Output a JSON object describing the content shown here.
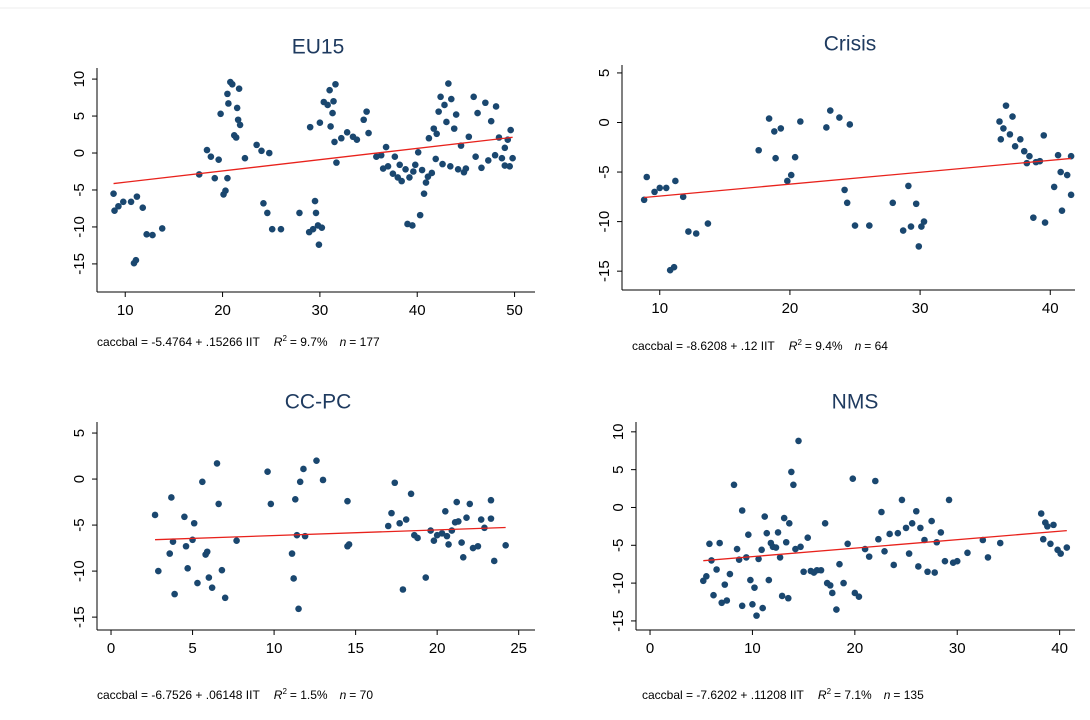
{
  "chart_data": [
    {
      "type": "scatter",
      "title": "EU15",
      "color": "#1a476f",
      "fit_color": "#e8221c",
      "fit": {
        "intercept": -5.4764,
        "slope": 0.15266
      },
      "footnote": {
        "equation": "caccbal = -5.4764 + .15266 IIT",
        "r2_label": "R",
        "r2_power": "2",
        "r2_value": "= 9.7%",
        "n_label": "n",
        "n_value": "= 177"
      },
      "xlim": [
        7.1,
        52.1
      ],
      "ylim": [
        -18.8,
        11.5
      ],
      "xticks": [
        10,
        20,
        30,
        40,
        50
      ],
      "yticks": [
        -15,
        -10,
        -5,
        0,
        5,
        10
      ],
      "x": [
        8.8,
        8.9,
        9.3,
        9.8,
        10.6,
        11.2,
        10.9,
        11.1,
        11.8,
        12.2,
        12.8,
        13.8,
        17.6,
        18.4,
        18.8,
        19.2,
        19.6,
        19.8,
        20.1,
        20.3,
        20.5,
        20.8,
        21,
        20.6,
        20.5,
        21.2,
        21.5,
        21.6,
        21.8,
        21.4,
        21.7,
        22.3,
        23.5,
        24,
        24.2,
        24.6,
        25.1,
        26,
        24.8,
        27.9,
        28.9,
        29.3,
        29.5,
        29.8,
        30.2,
        29.9,
        29.6,
        30,
        29,
        30.4,
        30.8,
        31,
        31.4,
        31.6,
        31.3,
        31.1,
        31.7,
        31.5,
        32.2,
        32.8,
        33.4,
        33.8,
        34.5,
        34.8,
        35,
        35.8,
        36.3,
        36.8,
        36.5,
        37,
        37.5,
        38,
        38.4,
        38.8,
        39.2,
        39.8,
        40.1,
        39.5,
        39,
        40.3,
        40.7,
        40.9,
        41.1,
        41.5,
        41.2,
        41.7,
        42,
        42.2,
        42.4,
        42.8,
        43,
        43.2,
        43.5,
        43.8,
        44,
        44.5,
        44.2,
        44.8,
        45.3,
        45.8,
        46.2,
        46.6,
        47,
        47.3,
        47.6,
        48,
        48.1,
        48.4,
        49,
        49.3,
        49.6,
        49.8,
        49,
        49.5,
        48.7,
        42.6,
        43.4,
        41.9,
        40.5,
        39.6,
        38.2,
        37.7,
        45,
        46
      ],
      "values": [
        -5.5,
        -7.8,
        -7.2,
        -6.6,
        -6.6,
        -5.9,
        -14.9,
        -14.5,
        -7.4,
        -11,
        -11.1,
        -10.2,
        -2.9,
        0.4,
        -0.5,
        -3.4,
        -0.9,
        5.3,
        -5.6,
        -5.1,
        -3.4,
        9.6,
        9.3,
        6.7,
        8,
        2.4,
        6.1,
        4.5,
        3.8,
        2.1,
        8.7,
        -0.7,
        1.1,
        0.3,
        -6.8,
        -8.1,
        -10.3,
        -10.3,
        0,
        -8.1,
        -10.7,
        -10.3,
        -6.5,
        -9.8,
        -10.1,
        -12.4,
        -8.1,
        4.1,
        3.5,
        6.9,
        6.5,
        8.5,
        7,
        9.3,
        5.4,
        3.6,
        -1.3,
        1.5,
        2,
        2.8,
        2.2,
        1.8,
        4.5,
        5.6,
        2.7,
        -0.5,
        -0.3,
        0.8,
        -2.1,
        -1.8,
        -2.8,
        -3.3,
        -3.8,
        -2.2,
        -3.3,
        -1.6,
        0.1,
        -9.8,
        -9.6,
        -8.4,
        -5.5,
        -4,
        -3.2,
        -2.7,
        2,
        3.3,
        2.6,
        5.6,
        7.6,
        6.5,
        4.2,
        9.4,
        7.3,
        3.3,
        5.2,
        1,
        -2.2,
        -2.6,
        2.2,
        7.6,
        5.4,
        -2,
        6.8,
        -1,
        4.3,
        -0.3,
        6.3,
        2.1,
        -1.7,
        1.8,
        3.1,
        -0.7,
        0.7,
        -1.8,
        -0.7,
        -1.5,
        -1.8,
        -0.8,
        -2.3,
        -2.5,
        -1.6,
        -0.5,
        -2.1,
        -0.5
      ]
    },
    {
      "type": "scatter",
      "title": "Crisis",
      "color": "#1a476f",
      "fit_color": "#e8221c",
      "fit": {
        "intercept": -8.6208,
        "slope": 0.12
      },
      "footnote": {
        "equation": "caccbal = -8.6208 + .12 IIT",
        "r2_label": "R",
        "r2_power": "2",
        "r2_value": "= 9.4%",
        "n_label": "n",
        "n_value": "= 64"
      },
      "xlim": [
        7.1,
        41.9
      ],
      "ylim": [
        -16.9,
        5.8
      ],
      "xticks": [
        10,
        20,
        30,
        40
      ],
      "yticks": [
        -15,
        -10,
        -5,
        0,
        5
      ],
      "x": [
        8.8,
        9,
        9.6,
        10,
        10.5,
        11.2,
        10.8,
        11.1,
        11.8,
        12.2,
        12.8,
        13.7,
        17.6,
        18.4,
        18.8,
        18.9,
        19.3,
        19.8,
        20.1,
        20.4,
        20.8,
        22.8,
        23.1,
        23.8,
        24.2,
        24.4,
        24.6,
        25,
        26.1,
        27.9,
        28.7,
        29.1,
        29.3,
        29.7,
        30.1,
        30.3,
        29.9,
        36.1,
        36.2,
        36.4,
        36.6,
        36.9,
        37.1,
        37.3,
        37.7,
        38,
        38.4,
        38.7,
        38.9,
        39.2,
        39.5,
        39.6,
        40.3,
        40.6,
        40.8,
        40.9,
        41.3,
        41.6,
        41.6,
        38.2
      ],
      "values": [
        -7.8,
        -5.5,
        -7,
        -6.6,
        -6.6,
        -5.9,
        -14.9,
        -14.6,
        -7.5,
        -11,
        -11.2,
        -10.2,
        -2.8,
        0.4,
        -0.9,
        -3.6,
        -0.6,
        -5.9,
        -5.3,
        -3.5,
        0.1,
        -0.5,
        1.2,
        0.5,
        -6.8,
        -8.1,
        -0.2,
        -10.4,
        -10.4,
        -8.1,
        -10.9,
        -6.4,
        -10.5,
        -8.2,
        -10.5,
        -10,
        -12.5,
        0.1,
        -1.7,
        -0.6,
        1.7,
        -1.2,
        0.6,
        -2.4,
        -1.7,
        -2.9,
        -3.4,
        -9.6,
        -4,
        -3.9,
        -1.3,
        -10.1,
        -6.5,
        -3.3,
        -5,
        -8.9,
        -5.3,
        -3.4,
        -7.3,
        -4.1
      ]
    },
    {
      "type": "scatter",
      "title": "CC-PC",
      "color": "#1a476f",
      "fit_color": "#e8221c",
      "fit": {
        "intercept": -6.7526,
        "slope": 0.06148
      },
      "footnote": {
        "equation": "caccbal = -6.7526 + .06148 IIT",
        "r2_label": "R",
        "r2_power": "2",
        "r2_value": "= 1.5%",
        "n_label": "n",
        "n_value": "= 70"
      },
      "xlim": [
        -0.86,
        26
      ],
      "ylim": [
        -16.4,
        6.2
      ],
      "xticks": [
        0,
        5,
        10,
        15,
        20,
        25
      ],
      "yticks": [
        -15,
        -10,
        -5,
        0,
        5
      ],
      "x": [
        2.7,
        2.9,
        3.7,
        3.9,
        3.8,
        3.6,
        4.5,
        4.6,
        4.7,
        5,
        5.1,
        5.3,
        5.6,
        5.8,
        5.9,
        6,
        6.2,
        6.5,
        6.6,
        6.8,
        7,
        9.6,
        9.8,
        11.1,
        11.2,
        11.3,
        11.4,
        11.5,
        11.6,
        11.8,
        11.9,
        12.6,
        13,
        14.5,
        14.5,
        14.6,
        17.2,
        17.4,
        17.7,
        17.9,
        18.1,
        18.4,
        18.6,
        18.8,
        19.3,
        19.6,
        19.8,
        20,
        20.3,
        20.5,
        20.6,
        20.9,
        21.1,
        21.2,
        21.3,
        21.5,
        21.6,
        21.8,
        22,
        22.2,
        22.5,
        22.7,
        22.9,
        23.3,
        23.5,
        24.2,
        23.3,
        20.7,
        17,
        7.7
      ],
      "values": [
        -3.9,
        -10,
        -2,
        -12.5,
        -6.8,
        -8.1,
        -4.1,
        -7.3,
        -9.7,
        -6.6,
        -4.8,
        -11.3,
        -0.3,
        -8.2,
        -7.9,
        -10.7,
        -11.8,
        1.7,
        -2.7,
        -9.9,
        -12.9,
        0.8,
        -2.7,
        -8.1,
        -10.8,
        -2.2,
        -6.1,
        -14.1,
        -0.3,
        1.1,
        -6.2,
        2,
        -0.1,
        -2.4,
        -7.3,
        -7.1,
        -3.7,
        -0.4,
        -4.8,
        -12,
        -4.4,
        -1.6,
        -6.1,
        -6.4,
        -10.7,
        -5.6,
        -6.7,
        -6.1,
        -5.9,
        -3.5,
        -6.2,
        -5.6,
        -4.7,
        -2.5,
        -4.6,
        -6.9,
        -8.5,
        -4.2,
        -2.7,
        -7.5,
        -7.3,
        -4.4,
        -5.3,
        -2.3,
        -8.9,
        -7.2,
        -4.3,
        -7.1,
        -5.1,
        -6.7
      ]
    },
    {
      "type": "scatter",
      "title": "NMS",
      "color": "#1a476f",
      "fit_color": "#e8221c",
      "fit": {
        "intercept": -7.6202,
        "slope": 0.11208
      },
      "footnote": {
        "equation": "caccbal = -7.6202 + .11208 IIT",
        "r2_label": "R",
        "r2_power": "2",
        "r2_value": "= 7.1%",
        "n_label": "n",
        "n_value": "= 135"
      },
      "xlim": [
        -1.37,
        41.5
      ],
      "ylim": [
        -16.2,
        11.3
      ],
      "xticks": [
        0,
        10,
        20,
        30,
        40
      ],
      "yticks": [
        -15,
        -10,
        -5,
        0,
        5,
        10
      ],
      "x": [
        5.2,
        5.5,
        5.8,
        6,
        6.2,
        6.5,
        6.8,
        7,
        7.3,
        7.5,
        7.8,
        8.2,
        8.5,
        8.7,
        9,
        9,
        9.4,
        9.6,
        9.8,
        10,
        10.2,
        10.4,
        10.6,
        10.9,
        11,
        11.2,
        11.4,
        11.6,
        11.8,
        12,
        12.3,
        12.5,
        12.7,
        12.9,
        13.1,
        13.3,
        13.5,
        13.6,
        13.8,
        14,
        14.2,
        14.5,
        14.7,
        15,
        15.4,
        15.7,
        16,
        16.3,
        16.7,
        17.1,
        17.3,
        17.6,
        17.8,
        18.2,
        18.5,
        18.9,
        19.3,
        19.8,
        20,
        20.4,
        21,
        21.4,
        22,
        22.3,
        22.6,
        22.9,
        23.4,
        23.8,
        24.2,
        24.6,
        25,
        25.3,
        25.6,
        26,
        26.4,
        26.8,
        27.1,
        27.5,
        28,
        28.4,
        28.8,
        29.2,
        29.6,
        30,
        31,
        32.5,
        33,
        34.2,
        38.2,
        38.4,
        38.6,
        38.8,
        39.1,
        39.4,
        39.8,
        40.1,
        40.7,
        26.2,
        27.8
      ],
      "values": [
        -9.7,
        -9.1,
        -4.8,
        -7,
        -11.6,
        -8.2,
        -4.7,
        -12.6,
        -10.2,
        -12.3,
        -8.8,
        3,
        -5.5,
        -6.9,
        -13,
        -0.4,
        -6.6,
        -3.6,
        -9.6,
        -12.8,
        -10.6,
        -14.3,
        -6.8,
        -5.6,
        -13.3,
        -1.2,
        -3.4,
        -9.6,
        -4.7,
        -5.2,
        -5.3,
        -3.3,
        -6.6,
        -11.7,
        -1.4,
        -4.6,
        -12,
        -2.1,
        4.7,
        3,
        -5.5,
        8.8,
        -5.2,
        -8.5,
        -4,
        -8.4,
        -8.6,
        -8.3,
        -8.3,
        -2.1,
        -10,
        -10.3,
        -11.3,
        -13.5,
        -7.5,
        -10,
        -4.8,
        3.8,
        -11.3,
        -11.8,
        -5.5,
        -6.5,
        3.5,
        -4.2,
        -0.6,
        -5.8,
        -3.5,
        -7.6,
        -3.4,
        1,
        -2.7,
        -6.1,
        -2.1,
        -0.5,
        -2.7,
        -4.3,
        -8.5,
        -1.8,
        -4.6,
        -3.3,
        -7.1,
        1,
        -7.3,
        -7.1,
        -6,
        -4.3,
        -6.6,
        -4.7,
        -0.8,
        -4.2,
        -2,
        -2.5,
        -4.8,
        -2.3,
        -5.6,
        -6.1,
        -5.3,
        -7.8,
        -8.6
      ]
    }
  ]
}
